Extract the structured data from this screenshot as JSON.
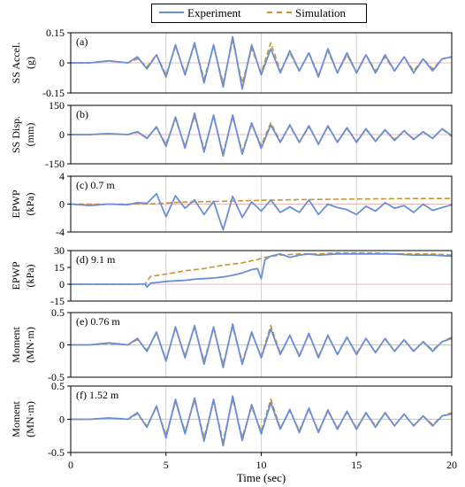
{
  "legend": {
    "experiment_label": "Experiment",
    "simulation_label": "Simulation",
    "experiment_color": "#6A8ED8",
    "simulation_color": "#C8962E"
  },
  "chart_data": [
    {
      "type": "line",
      "panel_label": "(a)",
      "ylabel_lines": [
        "SS Accel.",
        "(g)"
      ],
      "ylim": [
        -0.15,
        0.15
      ],
      "yticks": [
        "0.15",
        "0",
        "-0.15"
      ],
      "yticks_values": [
        0.15,
        0,
        -0.15
      ],
      "xlim": [
        0,
        20
      ],
      "series": [
        {
          "name": "Experiment",
          "x": [
            0,
            1,
            2,
            3,
            3.5,
            4,
            4.5,
            5,
            5.5,
            6,
            6.5,
            7,
            7.5,
            8,
            8.5,
            9,
            9.5,
            10,
            10.5,
            11,
            11.5,
            12,
            12.5,
            13,
            13.5,
            14,
            14.5,
            15,
            15.5,
            16,
            16.5,
            17,
            17.5,
            18,
            18.5,
            19,
            19.5,
            20
          ],
          "y": [
            0,
            0,
            0.01,
            0,
            0.03,
            -0.03,
            0.04,
            -0.07,
            0.09,
            -0.06,
            0.1,
            -0.1,
            0.09,
            -0.12,
            0.13,
            -0.13,
            0.09,
            -0.06,
            0.07,
            -0.05,
            0.06,
            -0.04,
            0.05,
            -0.07,
            0.07,
            -0.05,
            0.05,
            -0.05,
            0.04,
            -0.05,
            0.04,
            -0.04,
            0.03,
            -0.05,
            0.02,
            -0.04,
            0.02,
            0.03
          ]
        },
        {
          "name": "Simulation",
          "x": [
            0,
            1,
            2,
            3,
            3.5,
            4,
            4.5,
            5,
            5.5,
            6,
            6.5,
            7,
            7.5,
            8,
            8.5,
            9,
            9.5,
            10,
            10.5,
            11,
            11.5,
            12,
            12.5,
            13,
            13.5,
            14,
            14.5,
            15,
            15.5,
            16,
            16.5,
            17,
            17.5,
            18,
            18.5,
            19,
            19.5,
            20
          ],
          "y": [
            0,
            0,
            0.01,
            0,
            0.02,
            -0.02,
            0.04,
            -0.06,
            0.08,
            -0.05,
            0.09,
            -0.08,
            0.08,
            -0.1,
            0.11,
            -0.1,
            0.07,
            -0.05,
            0.1,
            -0.04,
            0.05,
            -0.04,
            0.05,
            -0.06,
            0.06,
            -0.05,
            0.04,
            -0.05,
            0.04,
            -0.04,
            0.03,
            -0.04,
            0.03,
            -0.04,
            0.02,
            -0.03,
            0.02,
            0.03
          ]
        }
      ]
    },
    {
      "type": "line",
      "panel_label": "(b)",
      "ylabel_lines": [
        "SS Disp.",
        "(mm)"
      ],
      "ylim": [
        -150,
        150
      ],
      "yticks": [
        "150",
        "0",
        "-150"
      ],
      "yticks_values": [
        150,
        0,
        -150
      ],
      "xlim": [
        0,
        20
      ],
      "series": [
        {
          "name": "Experiment",
          "x": [
            0,
            1,
            2,
            3,
            3.5,
            4,
            4.5,
            5,
            5.5,
            6,
            6.5,
            7,
            7.5,
            8,
            8.5,
            9,
            9.5,
            10,
            10.5,
            11,
            11.5,
            12,
            12.5,
            13,
            13.5,
            14,
            14.5,
            15,
            15.5,
            16,
            16.5,
            17,
            17.5,
            18,
            18.5,
            19,
            19.5,
            20
          ],
          "y": [
            0,
            0,
            5,
            0,
            15,
            -20,
            40,
            -60,
            90,
            -70,
            110,
            -90,
            100,
            -110,
            100,
            -100,
            60,
            -70,
            50,
            -40,
            50,
            -40,
            45,
            -50,
            45,
            -40,
            35,
            -40,
            30,
            -35,
            25,
            -30,
            20,
            -25,
            15,
            -20,
            30,
            -5
          ]
        },
        {
          "name": "Simulation",
          "x": [
            0,
            1,
            2,
            3,
            3.5,
            4,
            4.5,
            5,
            5.5,
            6,
            6.5,
            7,
            7.5,
            8,
            8.5,
            9,
            9.5,
            10,
            10.5,
            11,
            11.5,
            12,
            12.5,
            13,
            13.5,
            14,
            14.5,
            15,
            15.5,
            16,
            16.5,
            17,
            17.5,
            18,
            18.5,
            19,
            19.5,
            20
          ],
          "y": [
            0,
            0,
            3,
            0,
            12,
            -15,
            35,
            -50,
            80,
            -60,
            95,
            -75,
            90,
            -95,
            90,
            -85,
            50,
            -55,
            60,
            -35,
            45,
            -40,
            40,
            -45,
            40,
            -35,
            30,
            -35,
            25,
            -30,
            22,
            -25,
            18,
            -22,
            12,
            -18,
            28,
            -10
          ]
        }
      ]
    },
    {
      "type": "line",
      "panel_label": "(c) 0.7 m",
      "ylabel_lines": [
        "EPWP",
        "(kPa)"
      ],
      "ylim": [
        -4,
        4
      ],
      "yticks": [
        "4",
        "0",
        "-4"
      ],
      "yticks_values": [
        4,
        0,
        -4
      ],
      "xlim": [
        0,
        20
      ],
      "series": [
        {
          "name": "Experiment",
          "x": [
            0,
            1,
            2,
            3,
            3.5,
            4,
            4.5,
            5,
            5.5,
            6,
            6.5,
            7,
            7.5,
            8,
            8.5,
            9,
            9.5,
            10,
            10.5,
            11,
            11.5,
            12,
            12.5,
            13,
            13.5,
            14,
            14.5,
            15,
            15.5,
            16,
            16.5,
            17,
            17.5,
            18,
            18.5,
            19,
            19.5,
            20
          ],
          "y": [
            0,
            -0.2,
            0,
            -0.1,
            0.2,
            0.1,
            1.5,
            -1.8,
            1.2,
            -0.6,
            0.6,
            -1.5,
            0.4,
            -3.7,
            1.1,
            -1.9,
            0.3,
            -1.0,
            0.6,
            -1.2,
            -0.4,
            -1.2,
            0.6,
            -1.5,
            0,
            -0.5,
            -0.8,
            -1.5,
            -0.3,
            -1.0,
            0.2,
            -0.6,
            -0.2,
            -1.2,
            0,
            -0.9,
            -0.5,
            -0.1
          ]
        },
        {
          "name": "Simulation",
          "x": [
            0,
            4,
            6,
            8,
            10,
            12,
            14,
            16,
            18,
            20
          ],
          "y": [
            0,
            0,
            0.3,
            0.4,
            0.55,
            0.65,
            0.7,
            0.75,
            0.8,
            0.8
          ]
        }
      ]
    },
    {
      "type": "line",
      "panel_label": "(d) 9.1 m",
      "ylabel_lines": [
        "EPWP",
        "(kPa)"
      ],
      "ylim": [
        -15,
        30
      ],
      "yticks": [
        "30",
        "15",
        "0",
        "-15"
      ],
      "yticks_values": [
        30,
        15,
        0,
        -15
      ],
      "xlim": [
        0,
        20
      ],
      "series": [
        {
          "name": "Experiment",
          "x": [
            0,
            1,
            2,
            3,
            3.5,
            3.9,
            4,
            4.2,
            4.5,
            5,
            5.5,
            6,
            6.5,
            7,
            7.5,
            8,
            8.5,
            9,
            9.5,
            9.8,
            10,
            10.2,
            10.5,
            11,
            11.5,
            12,
            12.5,
            13,
            14,
            15,
            16,
            17,
            18,
            19,
            20
          ],
          "y": [
            0,
            0,
            0,
            0,
            0,
            0.3,
            -2.5,
            1,
            1.5,
            2.5,
            3,
            3.5,
            4.5,
            5,
            5.5,
            6.5,
            8,
            10,
            13,
            14,
            5,
            22,
            25,
            27,
            24,
            26,
            27,
            26,
            27,
            27,
            27,
            27,
            26,
            26,
            25
          ]
        },
        {
          "name": "Simulation",
          "x": [
            0,
            3.9,
            4.2,
            5,
            6,
            7,
            8,
            9,
            9.8,
            10.2,
            11,
            12,
            13,
            14,
            15,
            16,
            17,
            18,
            19,
            20
          ],
          "y": [
            0,
            0,
            7,
            9,
            12,
            14,
            17,
            19,
            22,
            24,
            26,
            27,
            27,
            28,
            28,
            28,
            27,
            27,
            27,
            26
          ]
        }
      ]
    },
    {
      "type": "line",
      "panel_label": "(e) 0.76 m",
      "ylabel_lines": [
        "Moment",
        "(MN·m)"
      ],
      "ylim": [
        -0.5,
        0.5
      ],
      "yticks": [
        "0.5",
        "0",
        "-0.5"
      ],
      "yticks_values": [
        0.5,
        0,
        -0.5
      ],
      "xlim": [
        0,
        20
      ],
      "series": [
        {
          "name": "Experiment",
          "x": [
            0,
            1,
            2,
            3,
            3.5,
            4,
            4.5,
            5,
            5.5,
            6,
            6.5,
            7,
            7.5,
            8,
            8.5,
            9,
            9.5,
            10,
            10.5,
            11,
            11.5,
            12,
            12.5,
            13,
            13.5,
            14,
            14.5,
            15,
            15.5,
            16,
            16.5,
            17,
            17.5,
            18,
            18.5,
            19,
            19.5,
            20
          ],
          "y": [
            0,
            0,
            0.03,
            0,
            0.1,
            -0.1,
            0.2,
            -0.25,
            0.28,
            -0.2,
            0.3,
            -0.3,
            0.28,
            -0.35,
            0.32,
            -0.3,
            0.2,
            -0.2,
            0.25,
            -0.15,
            0.15,
            -0.18,
            0.18,
            -0.2,
            0.15,
            -0.15,
            0.12,
            -0.15,
            0.1,
            -0.12,
            0.1,
            -0.1,
            0.08,
            -0.1,
            0.05,
            -0.1,
            0.05,
            0.1
          ]
        },
        {
          "name": "Simulation",
          "x": [
            0,
            1,
            2,
            3,
            3.5,
            4,
            4.5,
            5,
            5.5,
            6,
            6.5,
            7,
            7.5,
            8,
            8.5,
            9,
            9.5,
            10,
            10.5,
            11,
            11.5,
            12,
            12.5,
            13,
            13.5,
            14,
            14.5,
            15,
            15.5,
            16,
            16.5,
            17,
            17.5,
            18,
            18.5,
            19,
            19.5,
            20
          ],
          "y": [
            0,
            0,
            0.02,
            0,
            0.08,
            -0.08,
            0.18,
            -0.22,
            0.25,
            -0.17,
            0.27,
            -0.25,
            0.25,
            -0.3,
            0.28,
            -0.26,
            0.18,
            -0.18,
            0.3,
            -0.13,
            0.14,
            -0.16,
            0.16,
            -0.18,
            0.14,
            -0.14,
            0.11,
            -0.13,
            0.09,
            -0.11,
            0.09,
            -0.09,
            0.07,
            -0.09,
            0.05,
            -0.08,
            0.05,
            0.12
          ]
        }
      ]
    },
    {
      "type": "line",
      "panel_label": "(f) 1.52 m",
      "ylabel_lines": [
        "Moment",
        "(MN·m)"
      ],
      "ylim": [
        -0.5,
        0.5
      ],
      "yticks": [
        "0.5",
        "0",
        "-0.5"
      ],
      "yticks_values": [
        0.5,
        0,
        -0.5
      ],
      "xlim": [
        0,
        20
      ],
      "xticks": [
        "0",
        "5",
        "10",
        "15",
        "20"
      ],
      "xticks_values": [
        0,
        5,
        10,
        15,
        20
      ],
      "xlabel": "Time (sec)",
      "series": [
        {
          "name": "Experiment",
          "x": [
            0,
            1,
            2,
            3,
            3.5,
            4,
            4.5,
            5,
            5.5,
            6,
            6.5,
            7,
            7.5,
            8,
            8.5,
            9,
            9.5,
            10,
            10.5,
            11,
            11.5,
            12,
            12.5,
            13,
            13.5,
            14,
            14.5,
            15,
            15.5,
            16,
            16.5,
            17,
            17.5,
            18,
            18.5,
            19,
            19.5,
            20
          ],
          "y": [
            0,
            0,
            0.02,
            0,
            0.1,
            -0.12,
            0.2,
            -0.28,
            0.3,
            -0.22,
            0.32,
            -0.33,
            0.3,
            -0.4,
            0.35,
            -0.32,
            0.22,
            -0.22,
            0.25,
            -0.15,
            0.15,
            -0.2,
            0.17,
            -0.2,
            0.14,
            -0.15,
            0.12,
            -0.15,
            0.1,
            -0.12,
            0.1,
            -0.1,
            0.08,
            -0.1,
            0.05,
            -0.1,
            0.05,
            0.08
          ]
        },
        {
          "name": "Simulation",
          "x": [
            0,
            1,
            2,
            3,
            3.5,
            4,
            4.5,
            5,
            5.5,
            6,
            6.5,
            7,
            7.5,
            8,
            8.5,
            9,
            9.5,
            10,
            10.5,
            11,
            11.5,
            12,
            12.5,
            13,
            13.5,
            14,
            14.5,
            15,
            15.5,
            16,
            16.5,
            17,
            17.5,
            18,
            18.5,
            19,
            19.5,
            20
          ],
          "y": [
            0,
            0,
            0.02,
            0,
            0.08,
            -0.1,
            0.18,
            -0.24,
            0.26,
            -0.18,
            0.28,
            -0.27,
            0.26,
            -0.33,
            0.3,
            -0.27,
            0.18,
            -0.18,
            0.3,
            -0.13,
            0.13,
            -0.17,
            0.15,
            -0.18,
            0.12,
            -0.13,
            0.1,
            -0.13,
            0.09,
            -0.1,
            0.09,
            -0.09,
            0.07,
            -0.09,
            0.05,
            -0.08,
            0.05,
            0.1
          ]
        }
      ]
    }
  ]
}
